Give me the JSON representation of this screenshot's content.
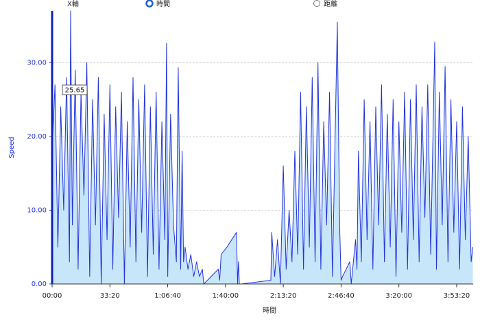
{
  "controls": {
    "axis_label": "X軸",
    "options": [
      "時間",
      "距離"
    ],
    "selected": 0
  },
  "chart_data": {
    "type": "line",
    "x_label": "時間",
    "y_label": "Speed",
    "annotation": "25.65",
    "color": "#2233dd",
    "fill": "#c8e6fa",
    "grid": true,
    "xlim": [
      0,
      14570
    ],
    "ylim": [
      0,
      37
    ],
    "xticks": [
      {
        "value": 0,
        "label": "00:00"
      },
      {
        "value": 2000,
        "label": "33:20"
      },
      {
        "value": 4000,
        "label": "1:06:40"
      },
      {
        "value": 6000,
        "label": "1:40:00"
      },
      {
        "value": 8000,
        "label": "2:13:20"
      },
      {
        "value": 10000,
        "label": "2:46:40"
      },
      {
        "value": 12000,
        "label": "3:20:00"
      },
      {
        "value": 14000,
        "label": "3:53:20"
      }
    ],
    "yticks": [
      {
        "value": 0,
        "label": "0.00"
      },
      {
        "value": 10,
        "label": "10.00"
      },
      {
        "value": 20,
        "label": "20.00"
      },
      {
        "value": 30,
        "label": "30.00"
      }
    ],
    "x": [
      0,
      100,
      200,
      300,
      400,
      500,
      600,
      640,
      700,
      800,
      900,
      1000,
      1100,
      1200,
      1300,
      1400,
      1500,
      1600,
      1700,
      1800,
      1900,
      2000,
      2100,
      2200,
      2300,
      2400,
      2500,
      2600,
      2700,
      2800,
      2900,
      3000,
      3100,
      3200,
      3300,
      3400,
      3500,
      3600,
      3700,
      3800,
      3900,
      3960,
      4000,
      4100,
      4200,
      4300,
      4365,
      4450,
      4500,
      4550,
      4600,
      4700,
      4800,
      4900,
      5000,
      5100,
      5200,
      5250,
      5750,
      5800,
      5850,
      6050,
      6380,
      6420,
      6450,
      6480,
      6550,
      7570,
      7600,
      7700,
      7800,
      7900,
      8000,
      8100,
      8200,
      8300,
      8400,
      8500,
      8600,
      8700,
      8800,
      8900,
      9000,
      9100,
      9200,
      9300,
      9400,
      9500,
      9600,
      9700,
      9870,
      9950,
      10000,
      10050,
      10300,
      10350,
      10500,
      10550,
      10600,
      10700,
      10800,
      10900,
      11000,
      11100,
      11200,
      11300,
      11400,
      11500,
      11600,
      11700,
      11800,
      11900,
      12000,
      12100,
      12200,
      12300,
      12400,
      12500,
      12600,
      12700,
      12800,
      12900,
      13000,
      13100,
      13240,
      13300,
      13400,
      13500,
      13600,
      13700,
      13800,
      13900,
      14000,
      14100,
      14200,
      14300,
      14400,
      14500,
      14560
    ],
    "values": [
      18,
      27,
      5,
      24,
      10,
      28,
      3,
      37,
      8,
      29,
      2,
      26,
      12,
      30,
      1,
      25,
      8,
      28,
      0,
      23,
      6,
      27,
      2,
      24,
      9,
      26,
      0,
      22,
      5,
      28,
      3,
      25,
      7,
      27,
      1,
      24,
      4,
      26,
      2,
      22,
      6,
      32.6,
      1,
      23,
      8,
      3,
      29.3,
      2,
      18,
      3,
      5,
      2,
      4,
      1,
      3,
      1,
      2,
      0,
      2,
      0.5,
      4,
      5,
      7,
      0,
      3,
      0,
      0,
      0.5,
      7,
      1,
      6,
      0,
      16,
      2,
      10,
      3,
      18,
      4,
      26,
      2,
      24,
      5,
      28,
      3,
      30,
      2,
      22,
      8,
      26,
      1,
      35.5,
      8,
      0.5,
      1,
      3,
      0,
      6,
      2,
      18,
      3,
      25,
      6,
      22,
      2,
      24,
      8,
      27,
      3,
      23,
      5,
      25,
      1,
      22,
      7,
      26,
      2,
      25,
      6,
      27,
      3,
      24,
      9,
      27,
      4,
      32.8,
      2,
      26,
      8,
      29.5,
      3,
      25,
      7,
      22,
      2,
      24,
      6,
      20,
      3,
      5
    ]
  }
}
